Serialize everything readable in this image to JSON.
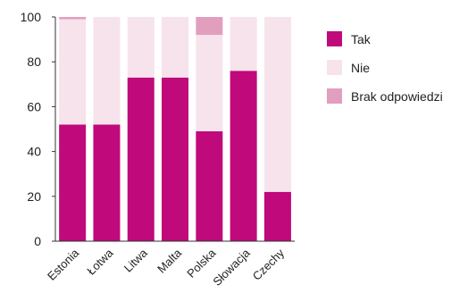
{
  "chart_data": {
    "type": "bar",
    "stacked": true,
    "categories": [
      "Estonia",
      "Łotwa",
      "Litwa",
      "Malta",
      "Polska",
      "Słowacja",
      "Czechy"
    ],
    "series": [
      {
        "name": "Tak",
        "color": "#c0097a",
        "values": [
          52,
          52,
          73,
          73,
          49,
          76,
          22
        ]
      },
      {
        "name": "Nie",
        "color": "#f6e3ec",
        "values": [
          47,
          48,
          27,
          27,
          43,
          24,
          78
        ]
      },
      {
        "name": "Brak odpowiedzi",
        "color": "#e29ebe",
        "values": [
          1,
          0,
          0,
          0,
          8,
          0,
          0
        ]
      }
    ],
    "yticks": [
      0,
      20,
      40,
      60,
      80,
      100
    ],
    "ylim": [
      0,
      100
    ],
    "grid": false,
    "legend_position": "right"
  }
}
